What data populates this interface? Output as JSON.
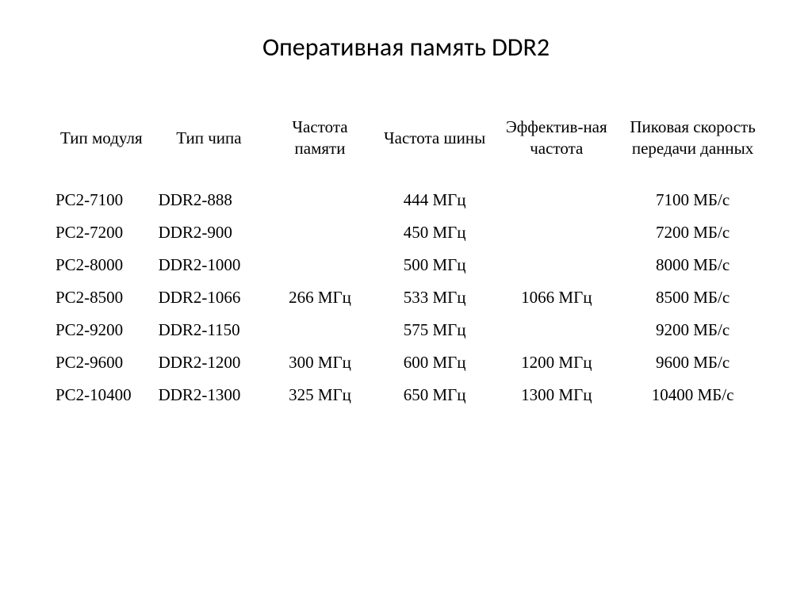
{
  "title": "Оперативная память DDR2",
  "table": {
    "type": "table",
    "background_color": "#ffffff",
    "text_color": "#000000",
    "header_fontsize": 21,
    "cell_fontsize": 21,
    "font_family": "Times New Roman",
    "columns": [
      {
        "key": "module",
        "label": "Тип модуля",
        "align": "left",
        "width": "15%"
      },
      {
        "key": "chip",
        "label": "Тип чипа",
        "align": "left",
        "width": "15%"
      },
      {
        "key": "mem_freq",
        "label": "Частота памяти",
        "align": "center",
        "width": "16%"
      },
      {
        "key": "bus_freq",
        "label": "Частота шины",
        "align": "center",
        "width": "16%"
      },
      {
        "key": "eff_freq",
        "label": "Эффектив-ная частота",
        "align": "center",
        "width": "18%"
      },
      {
        "key": "speed",
        "label": "Пиковая скорость передачи данных",
        "align": "center",
        "width": "20%"
      }
    ],
    "rows": [
      {
        "module": "PC2-7100",
        "chip": "DDR2-888",
        "mem_freq": "",
        "bus_freq": "444 МГц",
        "eff_freq": "",
        "speed": "7100 МБ/с"
      },
      {
        "module": "PC2-7200",
        "chip": "DDR2-900",
        "mem_freq": "",
        "bus_freq": "450 МГц",
        "eff_freq": "",
        "speed": "7200 МБ/с"
      },
      {
        "module": "PC2-8000",
        "chip": "DDR2-1000",
        "mem_freq": "",
        "bus_freq": "500 МГц",
        "eff_freq": "",
        "speed": "8000 МБ/с"
      },
      {
        "module": "PC2-8500",
        "chip": "DDR2-1066",
        "mem_freq": "266 МГц",
        "bus_freq": "533 МГц",
        "eff_freq": "1066 МГц",
        "speed": "8500 МБ/с"
      },
      {
        "module": "PC2-9200",
        "chip": "DDR2-1150",
        "mem_freq": "",
        "bus_freq": "575 МГц",
        "eff_freq": "",
        "speed": "9200 МБ/с"
      },
      {
        "module": "PC2-9600",
        "chip": "DDR2-1200",
        "mem_freq": "300 МГц",
        "bus_freq": "600 МГц",
        "eff_freq": "1200 МГц",
        "speed": "9600 МБ/с"
      },
      {
        "module": "PC2-10400",
        "chip": "DDR2-1300",
        "mem_freq": "325 МГц",
        "bus_freq": "650 МГц",
        "eff_freq": "1300 МГц",
        "speed": "10400 МБ/с"
      }
    ]
  }
}
